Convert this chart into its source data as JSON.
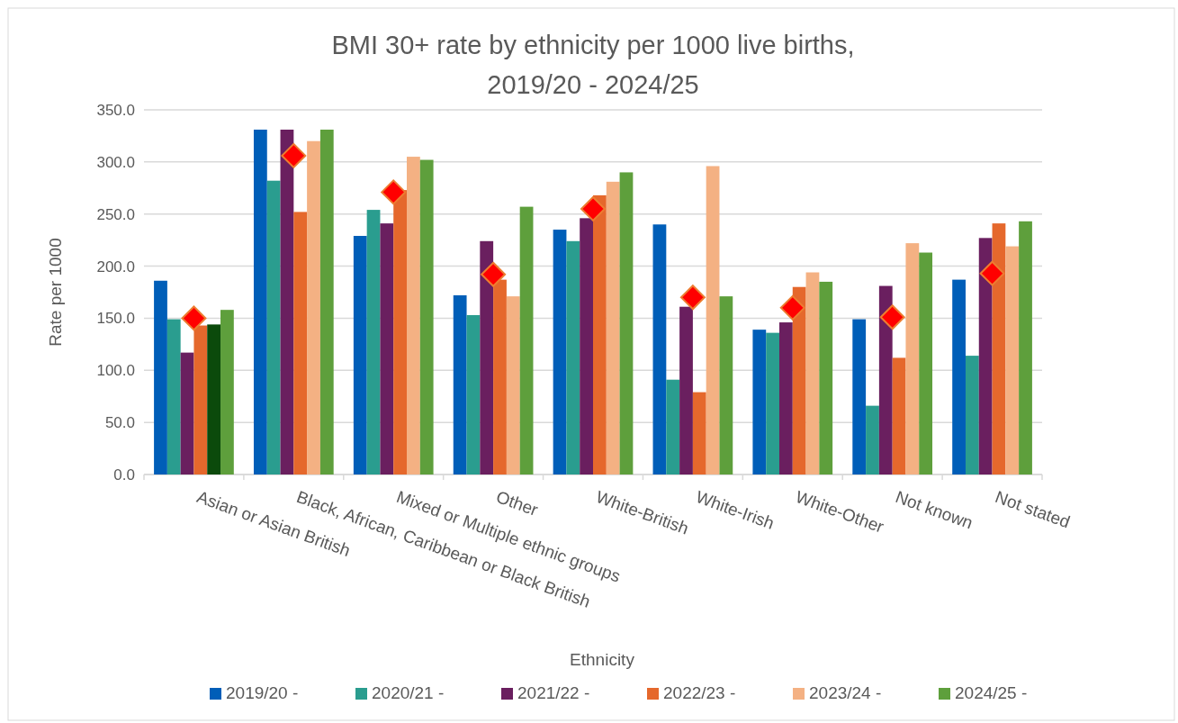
{
  "chart_data": {
    "type": "bar",
    "title": "BMI 30+ rate by ethnicity per 1000 live births,\n2019/20 - 2024/25",
    "xlabel": "Ethnicity",
    "ylabel": "Rate per 1000",
    "categories": [
      "Asian or Asian British",
      "Black, African, Caribbean or Black British",
      "Mixed or Multiple ethnic groups",
      "Other",
      "White-British",
      "White-Irish",
      "White-Other",
      "Not known",
      "Not stated"
    ],
    "series": [
      {
        "name": "2019/20 -",
        "color": "#005eb8",
        "values": [
          186,
          331,
          229,
          172,
          235,
          240,
          139,
          149,
          187
        ]
      },
      {
        "name": "2020/21 -",
        "color": "#2a9d8f",
        "values": [
          149,
          282,
          254,
          153,
          224,
          91,
          136,
          66,
          114
        ]
      },
      {
        "name": "2021/22 -",
        "color": "#6a1f5f",
        "values": [
          117,
          331,
          241,
          224,
          246,
          161,
          146,
          181,
          227
        ]
      },
      {
        "name": "2022/23 -",
        "color": "#e5682c",
        "values": [
          143,
          252,
          273,
          187,
          268,
          79,
          180,
          112,
          241
        ]
      },
      {
        "name": "2023/24 -",
        "color": "#f4b183",
        "colors": [
          "#0b4a0b",
          "#f4b183",
          "#f4b183",
          "#f4b183",
          "#f4b183",
          "#f4b183",
          "#f4b183",
          "#f4b183",
          "#f4b183"
        ],
        "values": [
          144,
          320,
          305,
          171,
          281,
          296,
          194,
          222,
          219
        ]
      },
      {
        "name": "2024/25 -",
        "color": "#5e9f3c",
        "values": [
          158,
          331,
          302,
          257,
          290,
          171,
          185,
          213,
          243
        ]
      },
      {
        "type": "scatter",
        "color": "#ff0000",
        "marker": "diamond",
        "x": [
          "Asian or Asian British",
          "Black, African, Caribbean or Black British",
          "Mixed or Multiple ethnic groups",
          "Other",
          "White-British",
          "White-Irish",
          "White-Other",
          "Not known",
          "Not stated"
        ],
        "values": [
          150,
          306,
          271,
          192,
          255,
          170,
          160,
          151,
          193
        ]
      }
    ],
    "ylim": [
      0,
      350
    ],
    "yticks": [
      {
        "value": 0,
        "label": "0.0"
      },
      {
        "value": 50,
        "label": "50.0"
      },
      {
        "value": 100,
        "label": "100.0"
      },
      {
        "value": 150,
        "label": "150.0"
      },
      {
        "value": 200,
        "label": "200.0"
      },
      {
        "value": 250,
        "label": "250.0"
      },
      {
        "value": 300,
        "label": "300.0"
      },
      {
        "value": 350,
        "label": "350.0"
      }
    ],
    "grid": "y",
    "legend": "bottom"
  }
}
